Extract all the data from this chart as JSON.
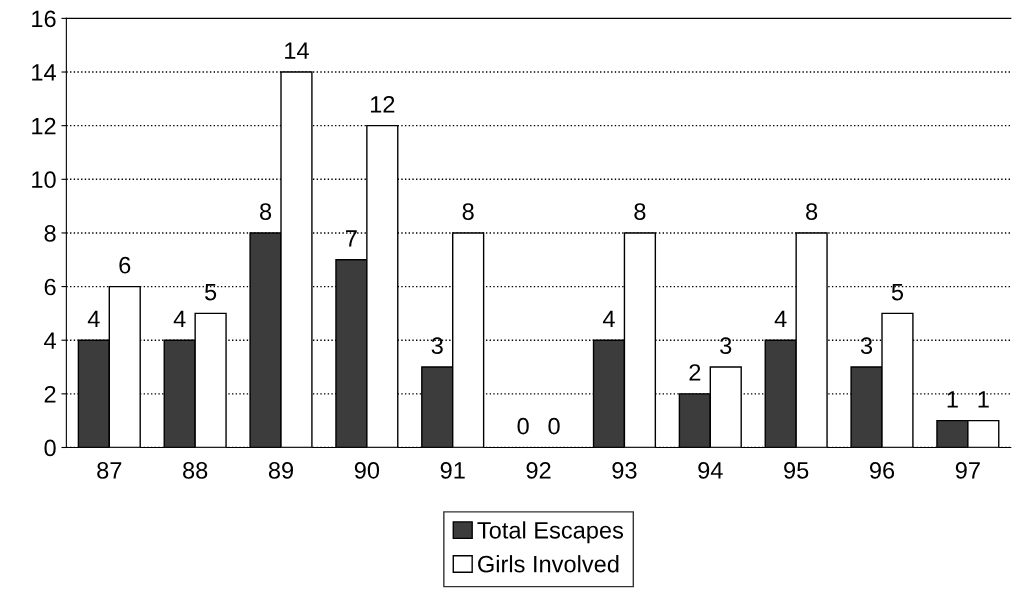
{
  "chart_data": {
    "type": "bar",
    "categories": [
      "87",
      "88",
      "89",
      "90",
      "91",
      "92",
      "93",
      "94",
      "95",
      "96",
      "97"
    ],
    "series": [
      {
        "name": "Total Escapes",
        "color": "#3c3c3c",
        "values": [
          4,
          4,
          8,
          7,
          3,
          0,
          4,
          2,
          4,
          3,
          1
        ]
      },
      {
        "name": "Girls Involved",
        "color": "#ffffff",
        "values": [
          6,
          5,
          14,
          12,
          8,
          0,
          8,
          3,
          8,
          5,
          1
        ]
      }
    ],
    "ylim": [
      0,
      16
    ],
    "yticks": [
      0,
      2,
      4,
      6,
      8,
      10,
      12,
      14,
      16
    ],
    "grid": "y",
    "line_style": "dotted",
    "data_labels": true,
    "legend": "bottom"
  }
}
